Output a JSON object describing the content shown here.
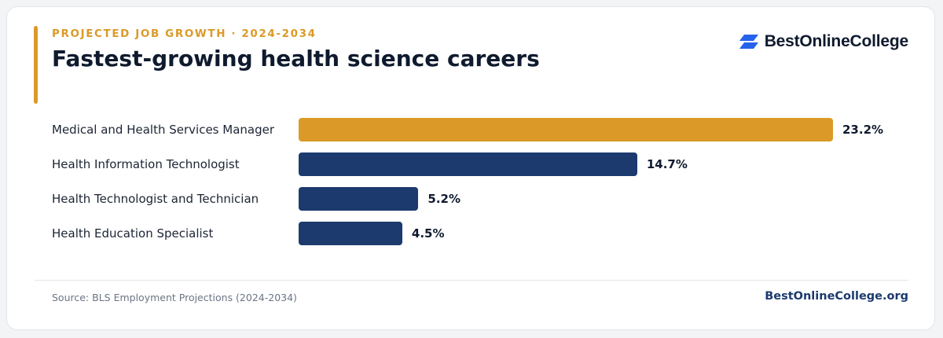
{
  "header": {
    "eyebrow": "PROJECTED JOB GROWTH · 2024-2034",
    "title": "Fastest-growing health science careers"
  },
  "brand": {
    "name": "BestOnlineCollege",
    "icon": "stacked-parallelogram-logo-icon",
    "icon_color": "#2563eb"
  },
  "colors": {
    "accent": "#db9a28",
    "bar_primary": "#1c3a6e",
    "bar_highlight": "#db9a28"
  },
  "chart_data": {
    "type": "bar",
    "orientation": "horizontal",
    "categories": [
      "Medical and Health Services Manager",
      "Health Information Technologist",
      "Health Technologist and Technician",
      "Health Education Specialist"
    ],
    "values": [
      23.2,
      14.7,
      5.2,
      4.5
    ],
    "value_labels": [
      "23.2%",
      "14.7%",
      "5.2%",
      "4.5%"
    ],
    "highlight_index": 0,
    "unit": "%",
    "xlim": [
      0,
      23.2
    ],
    "grid": false,
    "legend": "none"
  },
  "footer": {
    "source": "Source: BLS Employment Projections (2024-2034)",
    "site": "BestOnlineCollege.org"
  }
}
